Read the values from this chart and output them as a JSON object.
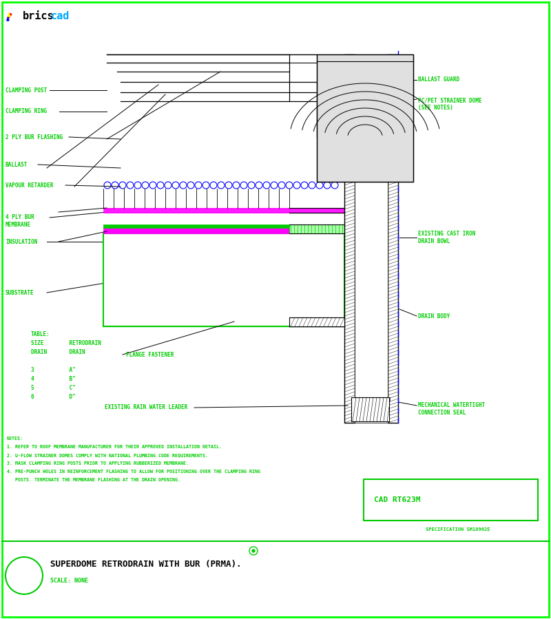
{
  "title": "SUPERDOME RETRODRAIN WITH BUR (PRMA).",
  "scale": "SCALE: NONE",
  "cad_number": "CAD RT623M",
  "spec": "SPECIFICATION SM10962E",
  "bg_color": "#ffffff",
  "border_color": "#00ff00",
  "text_color": "#00cc00",
  "line_color": "#000000",
  "magenta_color": "#ff00ff",
  "blue_color": "#0000ff",
  "green_color": "#00cc00",
  "notes_lines": [
    "NOTES:",
    "1. REFER TO ROOF MEMBRANE MANUFACTURER FOR THEIR APPROVED INSTALLATION DETAIL.",
    "2. U-FLOW STRAINER DOMES COMPLY WITH NATIONAL PLUMBING CODE REQUIREMENTS.",
    "3. MASK CLAMPING RING POSTS PRIOR TO APPLYING RUBBERIZED MEMBRANE.",
    "4. PRE-PUNCH HOLES IN REINFORCEMENT FLASHING TO ALLOW FOR POSITIONING OVER THE CLAMPING RING",
    "   POSTS. TERMINATE THE MEMBRANE FLASHING AT THE DRAIN OPENING."
  ],
  "table_lines": [
    "TABLE:",
    "SIZE        RETRODRAIN",
    "DRAIN       DRAIN",
    "",
    "3           A\"",
    "4           B\"",
    "5           C\"",
    "6           D\""
  ],
  "left_labels": [
    [
      "CLAMPING POST",
      768
    ],
    [
      "CLAMPING RING",
      737
    ],
    [
      "2 PLY BUR FLASHING",
      700
    ],
    [
      "BALLAST",
      660
    ],
    [
      "VAPOUR RETARDER",
      630
    ],
    [
      "4 PLY BUR\nMEMBRANE",
      578
    ],
    [
      "INSULATION",
      548
    ],
    [
      "SUBSTRATE",
      474
    ]
  ],
  "right_labels": [
    [
      "BALLAST GUARD",
      783
    ],
    [
      "PC/PET STRAINER DOME\n(SEE NOTES)",
      748
    ],
    [
      "EXISTING CAST IRON\nDRAIN BOWL",
      554
    ],
    [
      "DRAIN BODY",
      440
    ],
    [
      "MECHANICAL WATERTIGHT\nCONNECTION SEAL",
      305
    ]
  ]
}
